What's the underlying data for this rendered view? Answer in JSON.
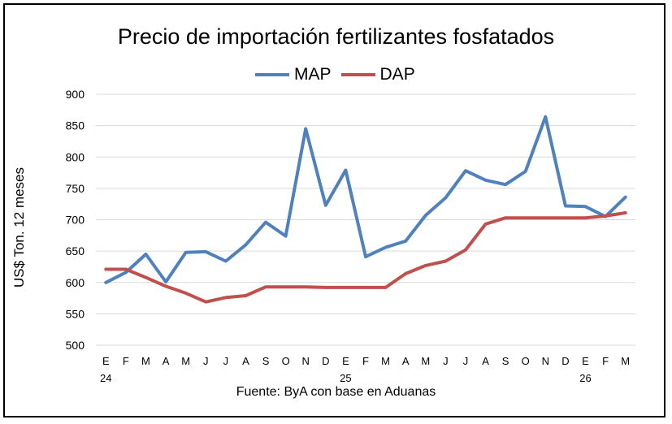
{
  "chart_data": {
    "type": "line",
    "title": "Precio de importación fertilizantes fosfatados",
    "ylabel": "US$ Ton. 12 meses",
    "xlabel": "",
    "ylim": [
      500,
      900
    ],
    "yticks": [
      500,
      550,
      600,
      650,
      700,
      750,
      800,
      850,
      900
    ],
    "grid": true,
    "legend_position": "top-center",
    "categories": [
      "E",
      "F",
      "M",
      "A",
      "M",
      "J",
      "J",
      "A",
      "S",
      "O",
      "N",
      "D",
      "E",
      "F",
      "M",
      "A",
      "M",
      "J",
      "J",
      "A",
      "S",
      "O",
      "N",
      "D",
      "E",
      "F",
      "M"
    ],
    "year_labels": [
      {
        "index": 0,
        "label": "24"
      },
      {
        "index": 12,
        "label": "25"
      },
      {
        "index": 24,
        "label": "26"
      }
    ],
    "series": [
      {
        "name": "MAP",
        "color": "#4F81BD",
        "values": [
          600,
          616,
          645,
          601,
          648,
          649,
          634,
          660,
          696,
          674,
          845,
          723,
          779,
          641,
          656,
          666,
          707,
          735,
          778,
          763,
          756,
          777,
          864,
          722,
          721,
          705,
          736
        ]
      },
      {
        "name": "DAP",
        "color": "#C0504D",
        "values": [
          621,
          621,
          608,
          594,
          583,
          569,
          576,
          579,
          593,
          593,
          593,
          592,
          592,
          592,
          592,
          614,
          627,
          634,
          652,
          693,
          703,
          703,
          703,
          703,
          703,
          706,
          711
        ]
      }
    ],
    "source": "Fuente: ByA con base en Aduanas"
  }
}
